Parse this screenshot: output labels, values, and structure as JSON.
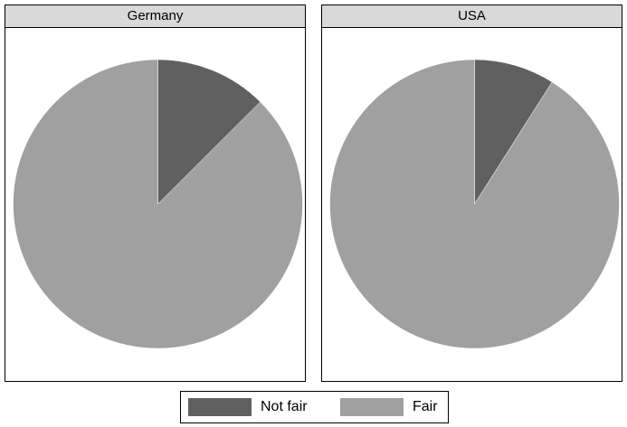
{
  "colors": {
    "not_fair": "#606060",
    "fair": "#a0a0a0",
    "edge": "#ffffff"
  },
  "chart_data": [
    {
      "type": "pie",
      "title": "Germany",
      "categories": [
        "Not fair",
        "Fair"
      ],
      "values": [
        12.5,
        87.5
      ]
    },
    {
      "type": "pie",
      "title": "USA",
      "categories": [
        "Not fair",
        "Fair"
      ],
      "values": [
        9,
        91
      ]
    }
  ],
  "legend": {
    "placement": "bottom",
    "items": [
      {
        "label": "Not fair",
        "color": "#606060"
      },
      {
        "label": "Fair",
        "color": "#a0a0a0"
      }
    ]
  }
}
